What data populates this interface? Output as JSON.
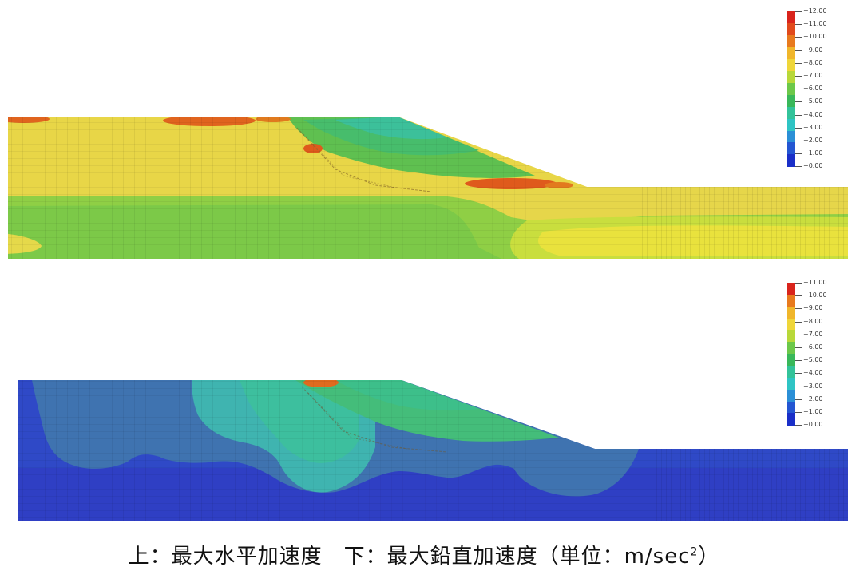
{
  "figures": [
    {
      "id": "horizontal",
      "legend_labels": [
        "+12.00",
        "+11.00",
        "+10.00",
        "+9.00",
        "+8.00",
        "+7.00",
        "+6.00",
        "+5.00",
        "+4.00",
        "+3.00",
        "+2.00",
        "+1.00",
        "+0.00"
      ],
      "legend_colors": [
        "#d9241c",
        "#e14a1c",
        "#e87a1e",
        "#f0b62b",
        "#efd63a",
        "#b8d83a",
        "#6cc84a",
        "#39b85a",
        "#33c39a",
        "#2fc4c4",
        "#2b8fd6",
        "#2456d2",
        "#1a2fc8"
      ]
    },
    {
      "id": "vertical",
      "legend_labels": [
        "+11.00",
        "+10.00",
        "+9.00",
        "+8.00",
        "+7.00",
        "+6.00",
        "+5.00",
        "+4.00",
        "+3.00",
        "+2.00",
        "+1.00",
        "+0.00"
      ],
      "legend_colors": [
        "#d9241c",
        "#e87a1e",
        "#f0b62b",
        "#efd63a",
        "#b8d83a",
        "#6cc84a",
        "#39b85a",
        "#33c39a",
        "#2fc4c4",
        "#2b8fd6",
        "#2456d2",
        "#1a2fc8"
      ]
    }
  ],
  "caption": {
    "text": "上：最大水平加速度　下：最大鉛直加速度（単位：m/sec",
    "superscript": "2",
    "closing": "）"
  }
}
